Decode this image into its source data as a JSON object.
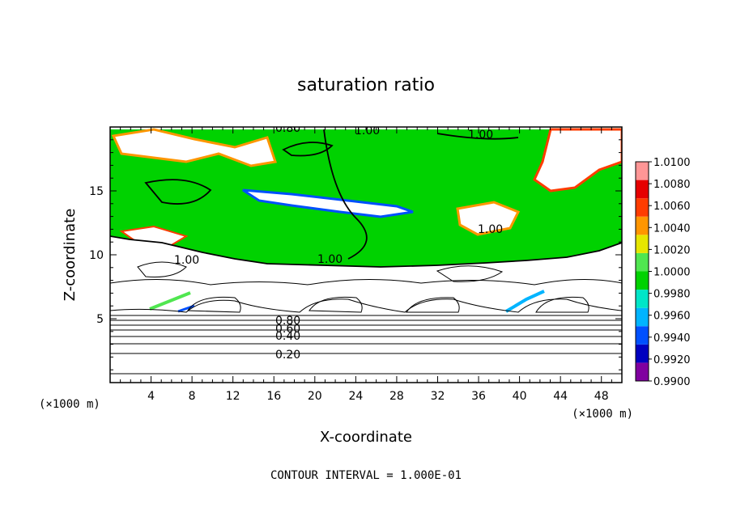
{
  "chart_data": {
    "type": "heatmap",
    "title": "saturation ratio",
    "xlabel": "X-coordinate",
    "ylabel": "Z-coordinate",
    "x_unit": "(×1000 m)",
    "y_unit": "(×1000 m)",
    "xlim": [
      0,
      50
    ],
    "ylim": [
      0,
      20
    ],
    "x_ticks": [
      4,
      8,
      12,
      16,
      20,
      24,
      28,
      32,
      36,
      40,
      44,
      48
    ],
    "y_ticks": [
      5,
      10,
      15
    ],
    "grid": false,
    "colorbar": {
      "levels": [
        "0.9900",
        "0.9920",
        "0.9940",
        "0.9960",
        "0.9980",
        "1.0000",
        "1.0020",
        "1.0040",
        "1.0060",
        "1.0080",
        "1.0100"
      ],
      "colors": [
        "#8000a0",
        "#0000c0",
        "#0050ff",
        "#00b4ff",
        "#00e6c8",
        "#00d200",
        "#50e650",
        "#e6e600",
        "#ff9600",
        "#ff3c00",
        "#e60000",
        "#ff9696"
      ]
    },
    "contour_labels": [
      "0.20",
      "0.40",
      "0.60",
      "0.80",
      "1.00"
    ],
    "contour_interval_text": "CONTOUR INTERVAL = 1.000E-01",
    "field_summary": {
      "near_saturation_region_z": [
        9.5,
        20
      ],
      "dominant_value_above_z_10": "1.0000",
      "subsaturated_below_z_9": true
    }
  }
}
